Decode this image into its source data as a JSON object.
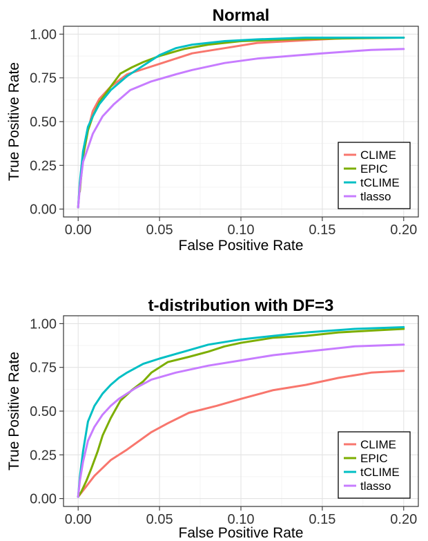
{
  "chart_data": [
    {
      "type": "line",
      "title": "Normal",
      "xlabel": "False Positive Rate",
      "ylabel": "True Positive Rate",
      "xlim": [
        0,
        0.2
      ],
      "ylim": [
        0,
        1
      ],
      "xticks": [
        "0.00",
        "0.05",
        "0.10",
        "0.15",
        "0.20"
      ],
      "yticks": [
        "0.00",
        "0.25",
        "0.50",
        "0.75",
        "1.00"
      ],
      "grid": true,
      "legend_position": "bottom-right",
      "series": [
        {
          "name": "CLIME",
          "color": "#f8766d",
          "x": [
            0,
            0.001,
            0.003,
            0.006,
            0.009,
            0.013,
            0.02,
            0.03,
            0.04,
            0.05,
            0.06,
            0.07,
            0.09,
            0.11,
            0.13,
            0.15,
            0.17,
            0.2
          ],
          "y": [
            0.01,
            0.14,
            0.3,
            0.45,
            0.56,
            0.63,
            0.7,
            0.77,
            0.8,
            0.83,
            0.86,
            0.89,
            0.92,
            0.95,
            0.96,
            0.97,
            0.98,
            0.98
          ]
        },
        {
          "name": "EPIC",
          "color": "#7cae00",
          "x": [
            0.001,
            0.003,
            0.006,
            0.009,
            0.013,
            0.02,
            0.026,
            0.033,
            0.04,
            0.05,
            0.065,
            0.08,
            0.1,
            0.13,
            0.16,
            0.2
          ],
          "y": [
            0.1,
            0.3,
            0.45,
            0.53,
            0.61,
            0.7,
            0.775,
            0.81,
            0.84,
            0.875,
            0.915,
            0.94,
            0.96,
            0.97,
            0.975,
            0.98
          ]
        },
        {
          "name": "tCLIME",
          "color": "#00bfc4",
          "x": [
            0,
            0.001,
            0.003,
            0.006,
            0.009,
            0.013,
            0.02,
            0.03,
            0.04,
            0.045,
            0.05,
            0.06,
            0.07,
            0.09,
            0.11,
            0.14,
            0.17,
            0.2
          ],
          "y": [
            0.01,
            0.15,
            0.33,
            0.47,
            0.53,
            0.6,
            0.68,
            0.76,
            0.82,
            0.85,
            0.88,
            0.92,
            0.94,
            0.96,
            0.97,
            0.98,
            0.98,
            0.98
          ]
        },
        {
          "name": "tlasso",
          "color": "#c77cff",
          "x": [
            0,
            0.001,
            0.003,
            0.006,
            0.009,
            0.015,
            0.022,
            0.032,
            0.045,
            0.06,
            0.07,
            0.09,
            0.11,
            0.13,
            0.15,
            0.18,
            0.2
          ],
          "y": [
            0.01,
            0.12,
            0.27,
            0.35,
            0.43,
            0.53,
            0.6,
            0.68,
            0.73,
            0.77,
            0.795,
            0.835,
            0.86,
            0.875,
            0.89,
            0.91,
            0.915
          ]
        }
      ]
    },
    {
      "type": "line",
      "title": "t-distribution with DF=3",
      "xlabel": "False Positive Rate",
      "ylabel": "True Positive Rate",
      "xlim": [
        0,
        0.2
      ],
      "ylim": [
        0,
        1
      ],
      "xticks": [
        "0.00",
        "0.05",
        "0.10",
        "0.15",
        "0.20"
      ],
      "yticks": [
        "0.00",
        "0.25",
        "0.50",
        "0.75",
        "1.00"
      ],
      "grid": true,
      "legend_position": "bottom-right",
      "series": [
        {
          "name": "CLIME",
          "color": "#f8766d",
          "x": [
            0,
            0.005,
            0.01,
            0.02,
            0.03,
            0.045,
            0.055,
            0.068,
            0.085,
            0.1,
            0.12,
            0.14,
            0.16,
            0.18,
            0.2
          ],
          "y": [
            0.01,
            0.07,
            0.13,
            0.22,
            0.28,
            0.38,
            0.43,
            0.49,
            0.53,
            0.57,
            0.62,
            0.65,
            0.69,
            0.72,
            0.73
          ]
        },
        {
          "name": "EPIC",
          "color": "#7cae00",
          "x": [
            0,
            0.002,
            0.005,
            0.008,
            0.012,
            0.015,
            0.02,
            0.026,
            0.033,
            0.04,
            0.045,
            0.055,
            0.068,
            0.08,
            0.09,
            0.1,
            0.12,
            0.14,
            0.16,
            0.18,
            0.2
          ],
          "y": [
            0.01,
            0.04,
            0.1,
            0.17,
            0.27,
            0.36,
            0.46,
            0.56,
            0.62,
            0.67,
            0.72,
            0.78,
            0.81,
            0.84,
            0.87,
            0.89,
            0.92,
            0.93,
            0.95,
            0.96,
            0.97
          ]
        },
        {
          "name": "tCLIME",
          "color": "#00bfc4",
          "x": [
            0,
            0.001,
            0.003,
            0.006,
            0.01,
            0.015,
            0.02,
            0.025,
            0.03,
            0.04,
            0.05,
            0.065,
            0.08,
            0.1,
            0.12,
            0.14,
            0.17,
            0.2
          ],
          "y": [
            0.01,
            0.12,
            0.27,
            0.44,
            0.53,
            0.6,
            0.65,
            0.69,
            0.72,
            0.77,
            0.8,
            0.84,
            0.88,
            0.91,
            0.93,
            0.95,
            0.97,
            0.98
          ]
        },
        {
          "name": "tlasso",
          "color": "#c77cff",
          "x": [
            0,
            0.001,
            0.003,
            0.006,
            0.01,
            0.015,
            0.02,
            0.025,
            0.035,
            0.045,
            0.06,
            0.08,
            0.1,
            0.12,
            0.14,
            0.17,
            0.2
          ],
          "y": [
            0.01,
            0.1,
            0.21,
            0.33,
            0.41,
            0.48,
            0.53,
            0.57,
            0.63,
            0.68,
            0.72,
            0.76,
            0.79,
            0.82,
            0.84,
            0.87,
            0.88
          ]
        }
      ]
    }
  ]
}
